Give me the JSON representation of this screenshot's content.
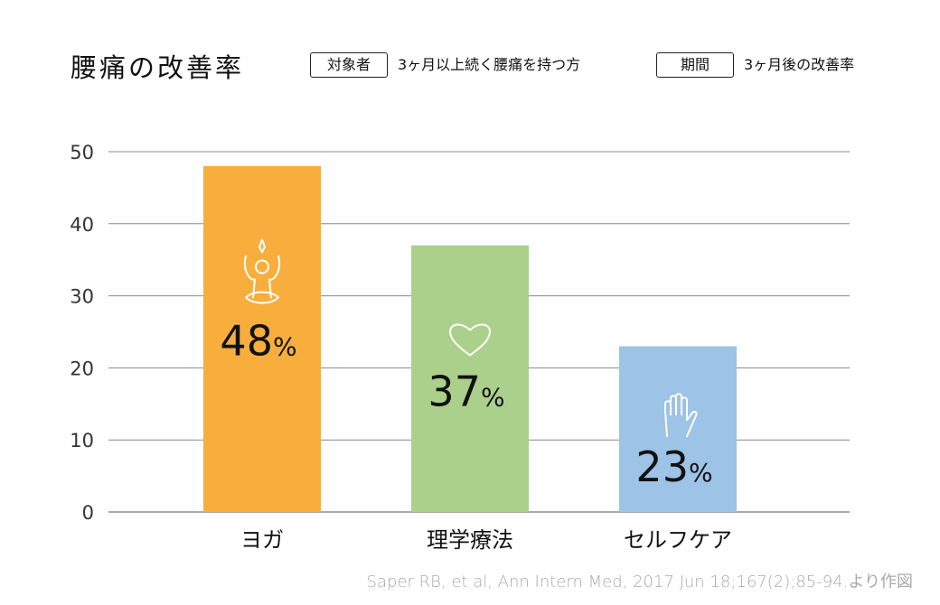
{
  "header": {
    "title": "腰痛の改善率",
    "target_label": "対象者",
    "target_value": "3ヶ月以上続く腰痛を持つ方",
    "period_label": "期間",
    "period_value": "3ヶ月後の改善率"
  },
  "chart_data": {
    "type": "bar",
    "title": "腰痛の改善率",
    "categories": [
      "ヨガ",
      "理学療法",
      "セルフケア"
    ],
    "values": [
      48,
      37,
      23
    ],
    "data_labels": [
      "48",
      "37",
      "23"
    ],
    "unit": "%",
    "icons": [
      "yoga-pose-icon",
      "heart-icon",
      "hand-icon"
    ],
    "colors": [
      "#F8AE3C",
      "#ABD08C",
      "#9DC3E6"
    ],
    "ylim": [
      0,
      50
    ],
    "yticks": [
      0,
      10,
      20,
      30,
      40,
      50
    ],
    "grid": true,
    "xlabel": "",
    "ylabel": ""
  },
  "source": "Saper RB, et al, Ann Intern Med, 2017 Jun 18;167(2);85-94.より作図"
}
